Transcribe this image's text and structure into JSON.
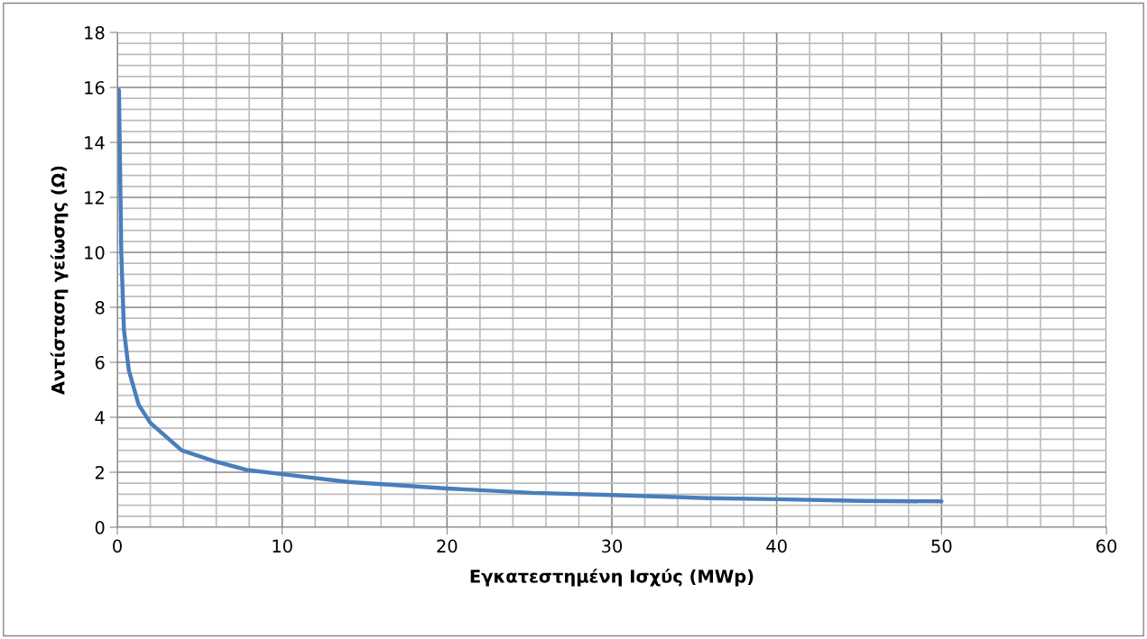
{
  "chart_data": {
    "type": "line",
    "xlabel": "Εγκατεστημένη Ισχύς (MWp)",
    "ylabel": "Αντίσταση γείωσης (Ω)",
    "series": [
      {
        "color": "#4a7ebb",
        "x": [
          0.1,
          0.24,
          0.4,
          0.7,
          1.3,
          2.0,
          3.9,
          5.9,
          7.9,
          10,
          14,
          20,
          25.2,
          30,
          35.8,
          40,
          45.1,
          50
        ],
        "values": [
          15.9,
          10,
          7.2,
          5.7,
          4.45,
          3.8,
          2.8,
          2.4,
          2.08,
          1.93,
          1.65,
          1.41,
          1.25,
          1.17,
          1.06,
          1.02,
          0.96,
          0.94
        ]
      }
    ],
    "xlim": [
      0,
      60
    ],
    "xticks": [
      0,
      10,
      20,
      30,
      40,
      50,
      60
    ],
    "ylim": [
      0,
      18
    ],
    "yticks": [
      0,
      2,
      4,
      6,
      8,
      10,
      12,
      14,
      16,
      18
    ],
    "grid": true,
    "marker": "none",
    "line_style": "solid"
  }
}
